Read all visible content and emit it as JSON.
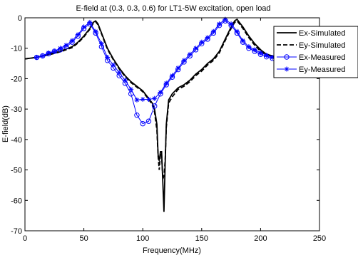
{
  "chart_data": {
    "type": "line",
    "title": "E-field at (0.3, 0.3, 0.6) for LT1-5W excitation, open load",
    "xlabel": "Frequency(MHz)",
    "ylabel": "E-field(dB)",
    "xlim": [
      0,
      250
    ],
    "ylim": [
      -70,
      0
    ],
    "xticks": [
      "0",
      "50",
      "100",
      "150",
      "200",
      "250"
    ],
    "yticks": [
      "0",
      "-10",
      "-20",
      "-30",
      "-40",
      "-50",
      "-60",
      "-70"
    ],
    "grid": false,
    "legend_position": "top-right",
    "series": [
      {
        "name": "Ex-Simulated",
        "color": "#000000",
        "style": "solid",
        "marker": "none",
        "x": [
          0,
          10,
          20,
          30,
          40,
          45,
          50,
          55,
          58,
          60,
          62,
          65,
          70,
          75,
          80,
          85,
          90,
          95,
          100,
          105,
          108,
          110,
          112,
          113,
          114,
          115,
          116,
          117,
          118,
          119,
          120,
          122,
          125,
          130,
          135,
          140,
          145,
          150,
          155,
          160,
          165,
          170,
          175,
          178,
          180,
          182,
          185,
          190,
          195,
          200,
          205,
          210,
          215,
          220
        ],
        "y": [
          -13.5,
          -13,
          -12,
          -11,
          -9.5,
          -8,
          -6,
          -3.5,
          -1.5,
          -1,
          -2,
          -5,
          -10,
          -13.5,
          -16.5,
          -19,
          -21,
          -22.5,
          -24,
          -26.5,
          -28,
          -30,
          -35,
          -45,
          -47,
          -44,
          -44,
          -54,
          -63.8,
          -48,
          -35,
          -27,
          -25,
          -23,
          -22,
          -20.5,
          -18.5,
          -17,
          -15,
          -13.5,
          -11,
          -7,
          -3,
          -1,
          -0.5,
          -1.5,
          -3,
          -6,
          -8.5,
          -10.5,
          -12,
          -12.5,
          -13,
          -13.5
        ]
      },
      {
        "name": "Ey-Simulated",
        "color": "#000000",
        "style": "dashed",
        "marker": "none",
        "x": [
          0,
          10,
          20,
          30,
          40,
          45,
          50,
          55,
          58,
          60,
          62,
          65,
          70,
          75,
          80,
          85,
          90,
          95,
          100,
          105,
          108,
          110,
          112,
          113,
          114,
          115,
          116,
          117,
          118,
          119,
          120,
          122,
          125,
          130,
          135,
          140,
          145,
          150,
          155,
          160,
          165,
          170,
          175,
          178,
          180,
          182,
          185,
          190,
          195,
          200,
          205,
          210,
          215,
          220
        ],
        "y": [
          -13.5,
          -13,
          -12.2,
          -11.2,
          -9.8,
          -8.3,
          -6.3,
          -3.8,
          -1.8,
          -1.3,
          -2.3,
          -5.3,
          -10.3,
          -13.8,
          -16.8,
          -19.3,
          -21.3,
          -22.8,
          -24.3,
          -26.8,
          -28.5,
          -31,
          -37,
          -45.5,
          -50,
          -44.5,
          -45,
          -53,
          -52,
          -47,
          -36,
          -28,
          -26,
          -23.5,
          -22.5,
          -21,
          -19,
          -17.5,
          -15.5,
          -14,
          -11.5,
          -7.5,
          -3.5,
          -1.5,
          -1,
          -2,
          -3.5,
          -6.5,
          -9,
          -11,
          -12.3,
          -12.8,
          -13.3,
          -13.8
        ]
      },
      {
        "name": "Ex-Measured",
        "color": "#0000ff",
        "style": "solid",
        "marker": "circle",
        "x": [
          10,
          15,
          20,
          25,
          30,
          35,
          40,
          45,
          50,
          55,
          60,
          65,
          70,
          75,
          80,
          85,
          90,
          95,
          100,
          105,
          110,
          115,
          120,
          125,
          130,
          135,
          140,
          145,
          150,
          155,
          160,
          165,
          170,
          175,
          180,
          185,
          190,
          195,
          200,
          205,
          210,
          215
        ],
        "y": [
          -13,
          -12.5,
          -11.8,
          -11,
          -10.5,
          -9.5,
          -8,
          -6,
          -3.5,
          -2,
          -5,
          -9.5,
          -14,
          -16.5,
          -19,
          -21.5,
          -25,
          -32,
          -34.8,
          -34,
          -29,
          -25,
          -22,
          -19.5,
          -17,
          -14.5,
          -12.5,
          -10.5,
          -8.5,
          -7,
          -5,
          -2.5,
          -1,
          -2.5,
          -5,
          -8,
          -10,
          -11,
          -12,
          -12.8,
          -13.3,
          -13.6
        ]
      },
      {
        "name": "Ey-Measured",
        "color": "#0000ff",
        "style": "solid",
        "marker": "star",
        "x": [
          10,
          15,
          20,
          25,
          30,
          35,
          40,
          45,
          50,
          55,
          60,
          65,
          70,
          75,
          80,
          85,
          90,
          95,
          100,
          105,
          110,
          115,
          120,
          125,
          130,
          135,
          140,
          145,
          150,
          155,
          160,
          165,
          170,
          175,
          180,
          185,
          190,
          195,
          200,
          205,
          210,
          215
        ],
        "y": [
          -13,
          -12.5,
          -11.5,
          -11,
          -10,
          -9,
          -7.5,
          -5.5,
          -3,
          -1.5,
          -4.5,
          -8.5,
          -13,
          -15.5,
          -18,
          -20.5,
          -23.5,
          -27,
          -26.8,
          -26.8,
          -26.5,
          -24.5,
          -21.5,
          -19,
          -16.5,
          -14,
          -12,
          -10,
          -8,
          -6.5,
          -4.5,
          -2,
          -0.5,
          -2,
          -4.5,
          -7.5,
          -9.5,
          -10.5,
          -11.5,
          -12.3,
          -13,
          -13.3
        ]
      }
    ]
  }
}
